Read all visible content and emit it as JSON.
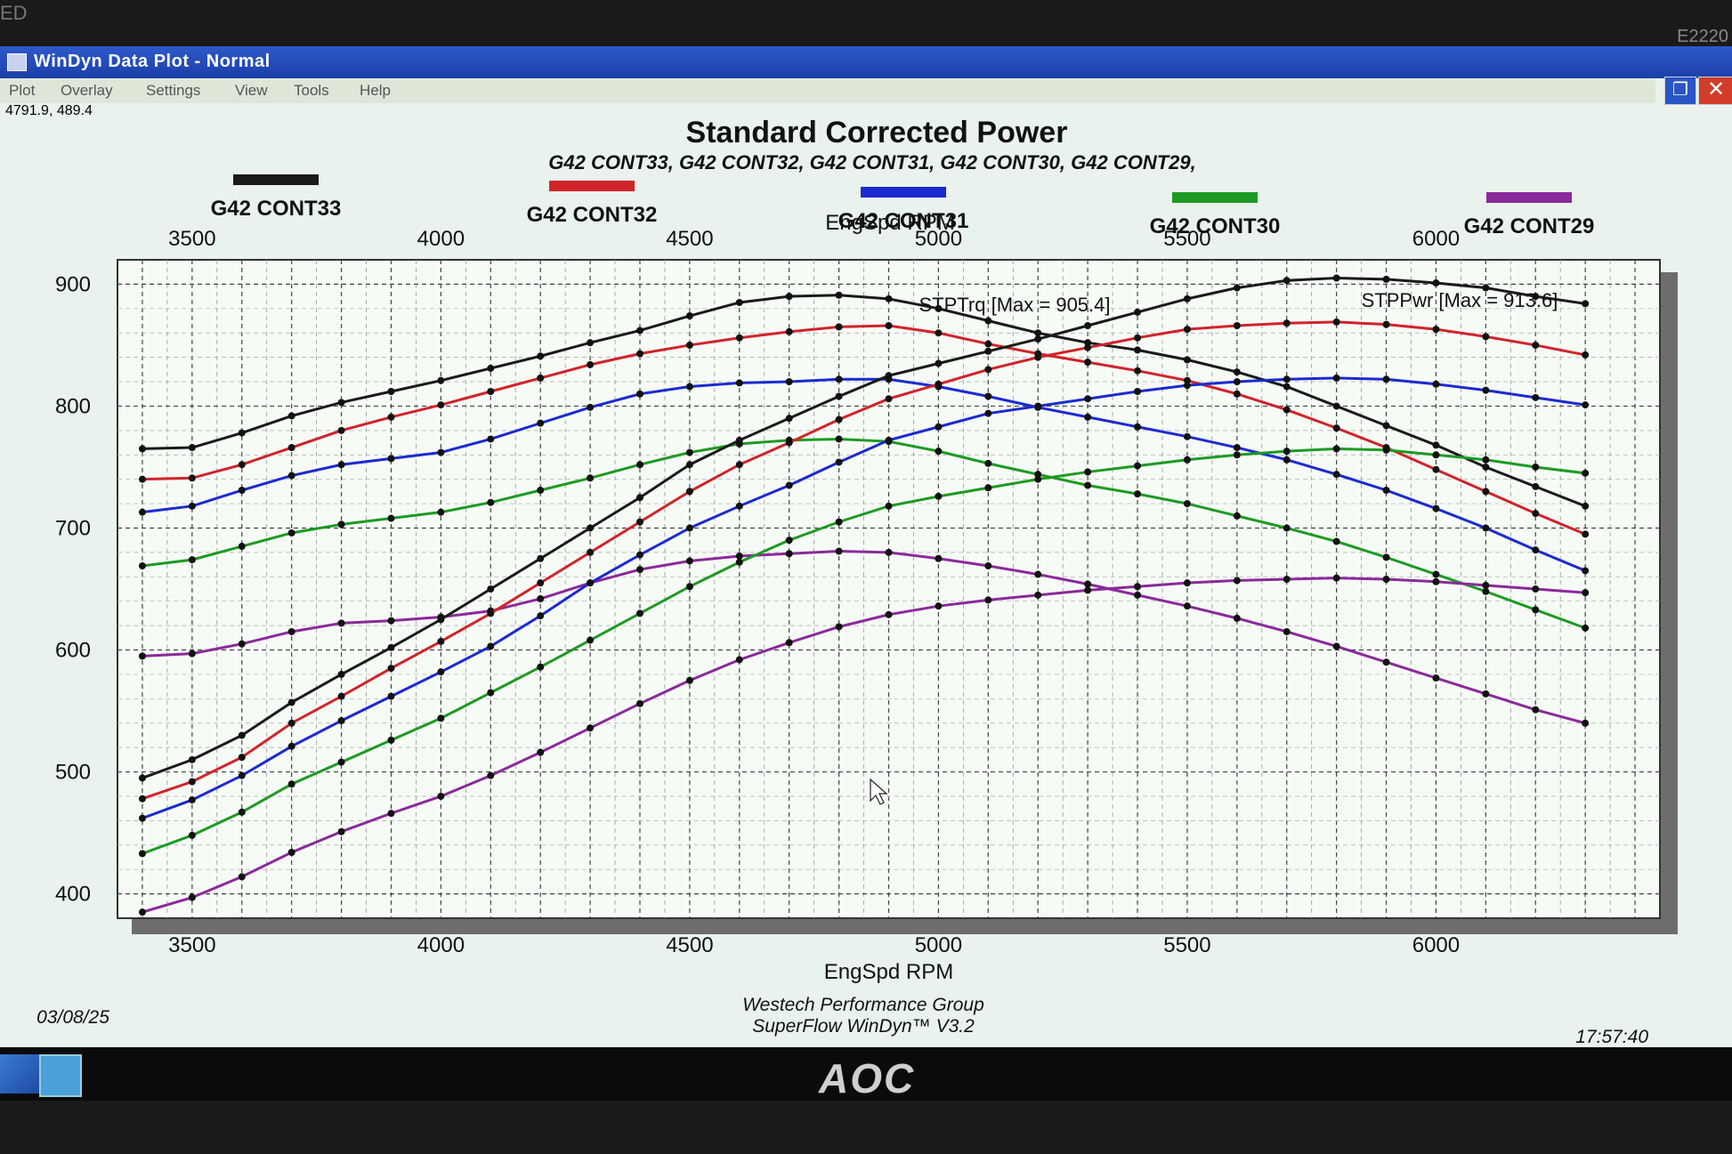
{
  "bezel": {
    "top_text": "ED",
    "model_text": "E2220",
    "brand": "AOC"
  },
  "window": {
    "title": "WinDyn Data Plot - Normal",
    "restore_icon": "restore-icon",
    "close_icon": "close-icon"
  },
  "menu": {
    "items": [
      "Plot",
      "Overlay",
      "Settings",
      "View",
      "Tools",
      "Help"
    ]
  },
  "cursor_readout": "4791.9, 489.4",
  "date": "03/08/25",
  "time": "17:57:40",
  "footer": {
    "line1": "Westech Performance Group",
    "line2": "SuperFlow WinDyn™ V3.2"
  },
  "colors": {
    "CONT33": "#1a1a1a",
    "CONT32": "#d0242a",
    "CONT31": "#1b2ad0",
    "CONT30": "#1d9a22",
    "CONT29": "#8a2a9a"
  },
  "chart_data": {
    "type": "line",
    "title": "Standard Corrected Power",
    "subtitle": "G42 CONT33, G42 CONT32, G42 CONT31, G42 CONT30, G42 CONT29,",
    "xlabel": "EngSpd RPM",
    "top_xlabel": "EngSpd RPM",
    "xlim": [
      3350,
      6450
    ],
    "ylim": [
      380,
      920
    ],
    "x_ticks": [
      3500,
      4000,
      4500,
      5000,
      5500,
      6000
    ],
    "y_ticks": [
      400,
      500,
      600,
      700,
      800,
      900
    ],
    "grid": true,
    "legend": [
      "G42 CONT33",
      "G42 CONT32",
      "G42 CONT31",
      "G42 CONT30",
      "G42 CONT29"
    ],
    "legend_position": "top",
    "annotations": {
      "torque": "STPTrq [Max = 905.4]",
      "power": "STPPwr [Max = 913.6]"
    },
    "x": [
      3400,
      3500,
      3600,
      3700,
      3800,
      3900,
      4000,
      4100,
      4200,
      4300,
      4400,
      4500,
      4600,
      4700,
      4800,
      4900,
      5000,
      5100,
      5200,
      5300,
      5400,
      5500,
      5600,
      5700,
      5800,
      5900,
      6000,
      6100,
      6200,
      6300
    ],
    "series": [
      {
        "name": "G42 CONT33",
        "measure": "torque",
        "values": [
          765,
          766,
          778,
          792,
          803,
          812,
          821,
          831,
          841,
          852,
          862,
          874,
          885,
          890,
          891,
          888,
          880,
          870,
          860,
          852,
          846,
          838,
          828,
          816,
          800,
          784,
          768,
          750,
          734,
          718
        ]
      },
      {
        "name": "G42 CONT32",
        "measure": "torque",
        "values": [
          740,
          741,
          752,
          766,
          780,
          791,
          801,
          812,
          823,
          834,
          843,
          850,
          856,
          861,
          865,
          866,
          860,
          851,
          843,
          836,
          829,
          821,
          810,
          797,
          782,
          766,
          748,
          730,
          712,
          695
        ]
      },
      {
        "name": "G42 CONT31",
        "measure": "torque",
        "values": [
          713,
          718,
          731,
          743,
          752,
          757,
          762,
          773,
          786,
          799,
          810,
          816,
          819,
          820,
          822,
          822,
          816,
          808,
          799,
          791,
          783,
          775,
          766,
          756,
          744,
          731,
          716,
          700,
          682,
          665
        ]
      },
      {
        "name": "G42 CONT30",
        "measure": "torque",
        "values": [
          669,
          674,
          685,
          696,
          703,
          708,
          713,
          721,
          731,
          741,
          752,
          762,
          769,
          772,
          773,
          771,
          763,
          753,
          744,
          735,
          728,
          720,
          710,
          700,
          689,
          676,
          662,
          648,
          633,
          618
        ]
      },
      {
        "name": "G42 CONT29",
        "measure": "torque",
        "values": [
          595,
          597,
          605,
          615,
          622,
          624,
          627,
          632,
          642,
          655,
          666,
          673,
          677,
          679,
          681,
          680,
          675,
          669,
          662,
          654,
          645,
          636,
          626,
          615,
          603,
          590,
          577,
          564,
          551,
          540
        ]
      },
      {
        "name": "G42 CONT33",
        "measure": "power",
        "values": [
          495,
          510,
          530,
          557,
          580,
          602,
          625,
          650,
          675,
          700,
          725,
          752,
          772,
          790,
          808,
          825,
          835,
          845,
          855,
          866,
          877,
          888,
          897,
          903,
          905,
          904,
          901,
          897,
          890,
          884
        ]
      },
      {
        "name": "G42 CONT32",
        "measure": "power",
        "values": [
          478,
          492,
          512,
          540,
          562,
          585,
          607,
          630,
          655,
          680,
          705,
          730,
          752,
          770,
          789,
          806,
          818,
          830,
          840,
          848,
          856,
          863,
          866,
          868,
          869,
          867,
          863,
          857,
          850,
          842
        ]
      },
      {
        "name": "G42 CONT31",
        "measure": "power",
        "values": [
          462,
          477,
          497,
          521,
          542,
          562,
          582,
          603,
          628,
          655,
          678,
          700,
          718,
          735,
          754,
          772,
          783,
          794,
          800,
          806,
          812,
          817,
          820,
          822,
          823,
          822,
          818,
          813,
          807,
          801
        ]
      },
      {
        "name": "G42 CONT30",
        "measure": "power",
        "values": [
          433,
          448,
          467,
          490,
          508,
          526,
          544,
          565,
          586,
          608,
          630,
          652,
          672,
          690,
          705,
          718,
          726,
          733,
          740,
          746,
          751,
          756,
          760,
          763,
          765,
          764,
          760,
          756,
          750,
          745
        ]
      },
      {
        "name": "G42 CONT29",
        "measure": "power",
        "values": [
          385,
          397,
          414,
          434,
          451,
          466,
          480,
          497,
          516,
          536,
          556,
          575,
          592,
          606,
          619,
          629,
          636,
          641,
          645,
          649,
          652,
          655,
          657,
          658,
          659,
          658,
          656,
          653,
          650,
          647
        ]
      }
    ]
  }
}
